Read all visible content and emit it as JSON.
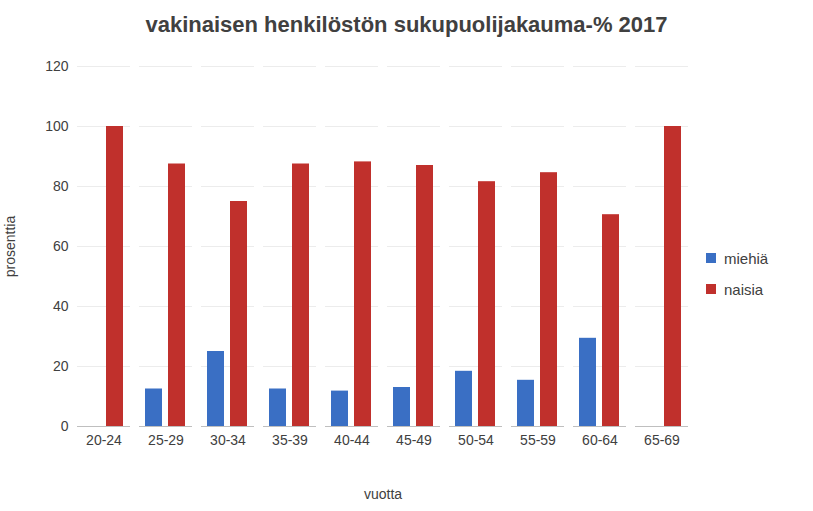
{
  "chart_data": {
    "type": "bar",
    "title": "vakinaisen henkilöstön sukupuolijakauma-%  2017",
    "x_label": "vuotta",
    "y_label": "prosenttia",
    "categories": [
      "20-24",
      "25-29",
      "30-34",
      "35-39",
      "40-44",
      "45-49",
      "50-54",
      "55-59",
      "60-64",
      "65-69"
    ],
    "series": [
      {
        "name": "miehiä",
        "color": "#3a6fc4",
        "values": [
          0,
          12.5,
          25,
          12.5,
          11.8,
          13,
          18.4,
          15.4,
          29.4,
          0
        ]
      },
      {
        "name": "naisia",
        "color": "#c0302c",
        "values": [
          100,
          87.5,
          75,
          87.5,
          88.2,
          87,
          81.6,
          84.6,
          70.6,
          100
        ]
      }
    ],
    "ylim": [
      0,
      120
    ],
    "yticks": [
      0,
      20,
      40,
      60,
      80,
      100,
      120
    ],
    "grid": true,
    "legend": "right"
  }
}
